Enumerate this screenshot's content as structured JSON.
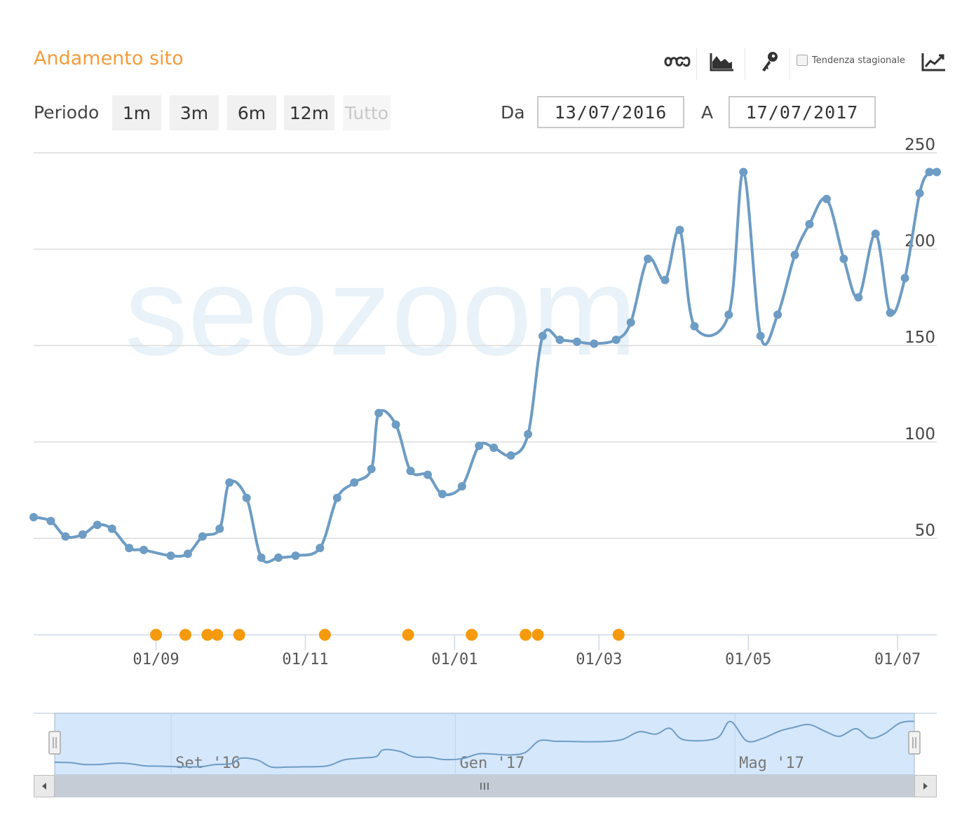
{
  "header": {
    "title": "Andamento sito",
    "seasonal_label": "Tendenza stagionale",
    "seasonal_checked": false,
    "icons": [
      "infinity-icon",
      "area-chart-icon",
      "key-icon",
      "trend-line-icon"
    ]
  },
  "period": {
    "label": "Periodo",
    "buttons": [
      "1m",
      "3m",
      "6m",
      "12m",
      "Tutto"
    ],
    "disabled": "Tutto"
  },
  "range": {
    "from_label": "Da",
    "from_value": "13/07/2016",
    "to_label": "A",
    "to_value": "17/07/2017"
  },
  "colors": {
    "line": "#6d9cc4",
    "events": "#f59a0c",
    "title": "#f39c3c",
    "navigator_fill": "#d5e7fb"
  },
  "chart_data": {
    "type": "line",
    "title": "",
    "xlabel": "",
    "ylabel": "",
    "ylim": [
      0,
      250
    ],
    "yticks": [
      50,
      100,
      150,
      200,
      250
    ],
    "xlim": [
      "2016-07-13",
      "2017-07-17"
    ],
    "x_tick_labels": [
      {
        "date": "2016-09-01",
        "label": "01/09"
      },
      {
        "date": "2016-11-01",
        "label": "01/11"
      },
      {
        "date": "2017-01-01",
        "label": "01/01"
      },
      {
        "date": "2017-03-01",
        "label": "01/03"
      },
      {
        "date": "2017-05-01",
        "label": "01/05"
      },
      {
        "date": "2017-07-01",
        "label": "01/07"
      }
    ],
    "grid": true,
    "series": [
      {
        "values": [
          [
            "2016-07-13",
            61
          ],
          [
            "2016-07-20",
            59
          ],
          [
            "2016-07-26",
            51
          ],
          [
            "2016-08-02",
            52
          ],
          [
            "2016-08-08",
            57
          ],
          [
            "2016-08-14",
            55
          ],
          [
            "2016-08-21",
            45
          ],
          [
            "2016-08-27",
            44
          ],
          [
            "2016-09-07",
            41
          ],
          [
            "2016-09-14",
            42
          ],
          [
            "2016-09-20",
            51
          ],
          [
            "2016-09-27",
            55
          ],
          [
            "2016-10-01",
            79
          ],
          [
            "2016-10-08",
            71
          ],
          [
            "2016-10-14",
            40
          ],
          [
            "2016-10-21",
            40
          ],
          [
            "2016-10-28",
            41
          ],
          [
            "2016-11-07",
            45
          ],
          [
            "2016-11-14",
            71
          ],
          [
            "2016-11-21",
            79
          ],
          [
            "2016-11-28",
            86
          ],
          [
            "2016-12-01",
            115
          ],
          [
            "2016-12-08",
            109
          ],
          [
            "2016-12-14",
            85
          ],
          [
            "2016-12-21",
            83
          ],
          [
            "2016-12-27",
            73
          ],
          [
            "2017-01-04",
            77
          ],
          [
            "2017-01-11",
            98
          ],
          [
            "2017-01-17",
            97
          ],
          [
            "2017-01-24",
            93
          ],
          [
            "2017-01-31",
            104
          ],
          [
            "2017-02-06",
            155
          ],
          [
            "2017-02-13",
            153
          ],
          [
            "2017-02-20",
            152
          ],
          [
            "2017-02-27",
            151
          ],
          [
            "2017-03-08",
            153
          ],
          [
            "2017-03-14",
            162
          ],
          [
            "2017-03-21",
            195
          ],
          [
            "2017-03-28",
            184
          ],
          [
            "2017-04-03",
            210
          ],
          [
            "2017-04-09",
            160
          ],
          [
            "2017-04-23",
            166
          ],
          [
            "2017-04-29",
            240
          ],
          [
            "2017-05-06",
            155
          ],
          [
            "2017-05-13",
            166
          ],
          [
            "2017-05-20",
            197
          ],
          [
            "2017-05-26",
            213
          ],
          [
            "2017-06-02",
            226
          ],
          [
            "2017-06-09",
            195
          ],
          [
            "2017-06-15",
            175
          ],
          [
            "2017-06-22",
            208
          ],
          [
            "2017-06-28",
            167
          ],
          [
            "2017-07-04",
            185
          ],
          [
            "2017-07-10",
            229
          ],
          [
            "2017-07-14",
            240
          ],
          [
            "2017-07-17",
            240
          ]
        ]
      }
    ],
    "event_markers": [
      "2016-09-01",
      "2016-09-13",
      "2016-09-22",
      "2016-09-26",
      "2016-10-05",
      "2016-11-09",
      "2016-12-13",
      "2017-01-08",
      "2017-01-30",
      "2017-02-04",
      "2017-03-09"
    ],
    "navigator": {
      "labels": [
        {
          "date": "2016-09-01",
          "label": "Set '16"
        },
        {
          "date": "2017-01-01",
          "label": "Gen '17"
        },
        {
          "date": "2017-05-01",
          "label": "Mag '17"
        }
      ]
    },
    "watermark": "seozoom"
  }
}
